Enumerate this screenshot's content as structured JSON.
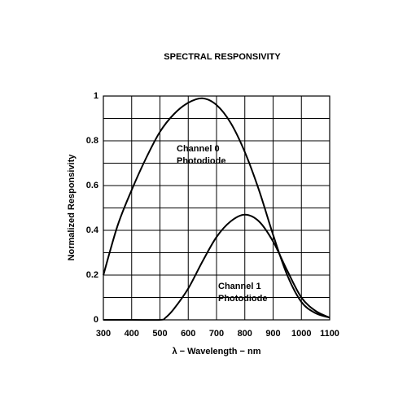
{
  "chart_data": {
    "type": "line",
    "title": "SPECTRAL RESPONSIVITY",
    "x_label": "λ − Wavelength − nm",
    "y_label": "Normalized Responsivity",
    "xlim": [
      300,
      1100
    ],
    "xticks": [
      300,
      400,
      500,
      600,
      700,
      800,
      900,
      1000,
      1100
    ],
    "ylim": [
      0,
      1
    ],
    "yticks": [
      0,
      0.2,
      0.4,
      0.6,
      0.8,
      1
    ],
    "y_minor_ticks": [
      0.1,
      0.3,
      0.5,
      0.7,
      0.9
    ],
    "grid": true,
    "series": [
      {
        "name": [
          "Channel 0",
          "Photodiode"
        ],
        "color": "#000000",
        "x": [
          300,
          350,
          400,
          450,
          500,
          550,
          600,
          650,
          700,
          750,
          800,
          850,
          900,
          950,
          1000,
          1050,
          1100
        ],
        "values": [
          0.2,
          0.42,
          0.58,
          0.72,
          0.84,
          0.92,
          0.97,
          0.99,
          0.96,
          0.88,
          0.75,
          0.58,
          0.38,
          0.2,
          0.08,
          0.03,
          0.01
        ]
      },
      {
        "name": [
          "Channel 1",
          "Photodiode"
        ],
        "color": "#000000",
        "x": [
          300,
          400,
          500,
          520,
          550,
          600,
          650,
          700,
          750,
          800,
          850,
          900,
          950,
          1000,
          1050,
          1100
        ],
        "values": [
          0,
          0,
          0,
          0.01,
          0.05,
          0.14,
          0.26,
          0.37,
          0.44,
          0.47,
          0.44,
          0.35,
          0.22,
          0.1,
          0.04,
          0.01
        ]
      }
    ]
  }
}
